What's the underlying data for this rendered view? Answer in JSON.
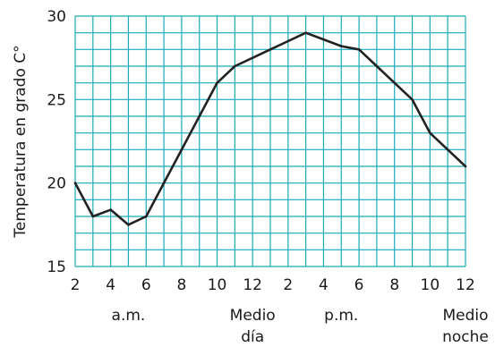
{
  "chart_data": {
    "type": "line",
    "title": "",
    "ylabel": "Temperatura en grado C°",
    "xlabel": "",
    "x": [
      0,
      1,
      2,
      3,
      4,
      5,
      6,
      7,
      8,
      9,
      10,
      11,
      12,
      13,
      14,
      15,
      16,
      17,
      18,
      19,
      20,
      21,
      22
    ],
    "x_tick_labels": [
      "2",
      "4",
      "6",
      "8",
      "10",
      "12",
      "2",
      "4",
      "6",
      "8",
      "10",
      "12"
    ],
    "series": [
      {
        "values": [
          20,
          18,
          18.4,
          17.5,
          18,
          20,
          22,
          24,
          26,
          27,
          27.5,
          28,
          28.5,
          29,
          28.6,
          28.2,
          28,
          27,
          26,
          25,
          23,
          22,
          21
        ]
      }
    ],
    "ylim": [
      15,
      30
    ],
    "y_ticks": [
      15,
      20,
      25,
      30
    ],
    "grid": true,
    "period_labels": [
      {
        "lines": [
          "a.m."
        ],
        "at": 3
      },
      {
        "lines": [
          "Medio",
          "día"
        ],
        "at": 10
      },
      {
        "lines": [
          "p.m."
        ],
        "at": 15
      },
      {
        "lines": [
          "Medio",
          "noche"
        ],
        "at": 22
      }
    ],
    "colors": {
      "grid": "#19aab8",
      "line": "#222222"
    }
  }
}
